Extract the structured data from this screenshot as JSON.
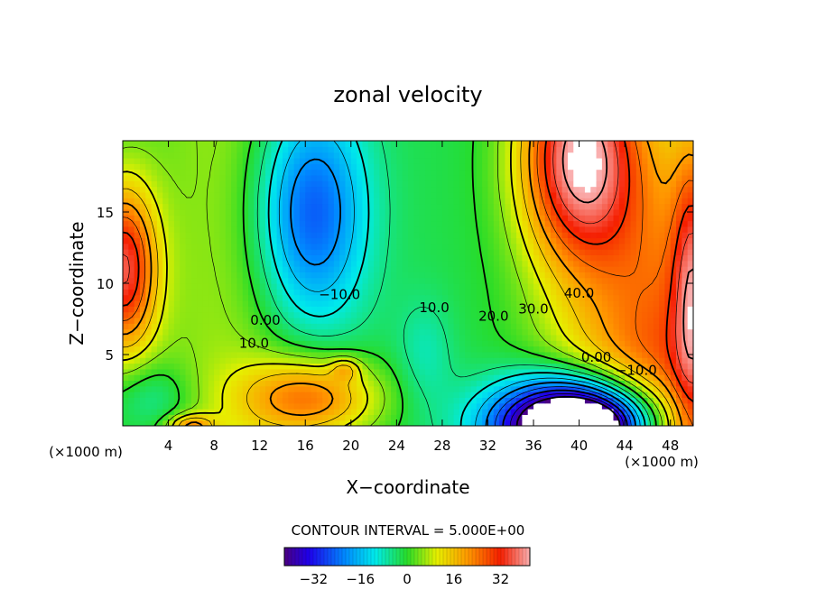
{
  "chart_data": {
    "type": "heatmap",
    "title": "zonal velocity",
    "xlabel": "X−coordinate",
    "ylabel": "Z−coordinate",
    "x_unit": "(×1000 m)",
    "y_unit": "(×1000 m)",
    "xlim": [
      0,
      50
    ],
    "ylim": [
      0,
      20
    ],
    "x_ticks": [
      4,
      8,
      12,
      16,
      20,
      24,
      28,
      32,
      36,
      40,
      44,
      48
    ],
    "y_ticks": [
      5,
      10,
      15
    ],
    "contour_interval_text": "CONTOUR INTERVAL = 5.000E+00",
    "contour_interval": 5,
    "colorbar": {
      "ticks": [
        -32,
        -16,
        0,
        16,
        32
      ],
      "tick_labels": [
        "−32",
        "−16",
        "0",
        "16",
        "32"
      ],
      "range": [
        -42,
        42
      ]
    },
    "contour_labels": [
      {
        "text": "40.0",
        "x": 40.0,
        "y": 9.3,
        "value": 40
      },
      {
        "text": "30.0",
        "x": 36.0,
        "y": 8.2,
        "value": 30
      },
      {
        "text": "20.0",
        "x": 32.5,
        "y": 7.7,
        "value": 20
      },
      {
        "text": "10.0",
        "x": 27.3,
        "y": 8.3,
        "value": 10
      },
      {
        "text": "−10.0",
        "x": 19.0,
        "y": 9.2,
        "value": -10
      },
      {
        "text": "0.00",
        "x": 12.5,
        "y": 7.4,
        "value": 0
      },
      {
        "text": "10.0",
        "x": 11.5,
        "y": 5.8,
        "value": 10
      },
      {
        "text": "0.00",
        "x": 41.5,
        "y": 4.8,
        "value": 0
      },
      {
        "text": "−10.0",
        "x": 45.0,
        "y": 3.9,
        "value": -10
      }
    ],
    "field_features": [
      {
        "x": 47.5,
        "y": 0,
        "sx": 9,
        "sy": 20,
        "a": 32
      },
      {
        "x": 50.0,
        "y": 10,
        "sx": 1.8,
        "sy": 10,
        "a": 20
      },
      {
        "x": 40.0,
        "y": 19,
        "sx": 5.2,
        "sy": 7.5,
        "a": 40
      },
      {
        "x": 40.0,
        "y": 0,
        "sx": 7,
        "sy": 3.2,
        "a": -76
      },
      {
        "x": 40.0,
        "y": 0,
        "sx": 2.8,
        "sy": 1.2,
        "a": -30
      },
      {
        "x": 16.5,
        "y": 15,
        "sx": 4.8,
        "sy": 8,
        "a": -26
      },
      {
        "x": 16.5,
        "y": 2,
        "sx": 6,
        "sy": 2.8,
        "a": 24
      },
      {
        "x": 19.5,
        "y": 4,
        "sx": 1.3,
        "sy": 0.8,
        "a": 10
      },
      {
        "x": 6.0,
        "y": 0,
        "sx": 2,
        "sy": 0.8,
        "a": 18
      },
      {
        "x": 0.0,
        "y": 11,
        "sx": 3,
        "sy": 6,
        "a": 36
      },
      {
        "x": 2.5,
        "y": 2,
        "sx": 3.5,
        "sy": 2.5,
        "a": -8
      },
      {
        "x": 26.5,
        "y": 5,
        "sx": 2.5,
        "sy": 4,
        "a": -6
      }
    ]
  }
}
